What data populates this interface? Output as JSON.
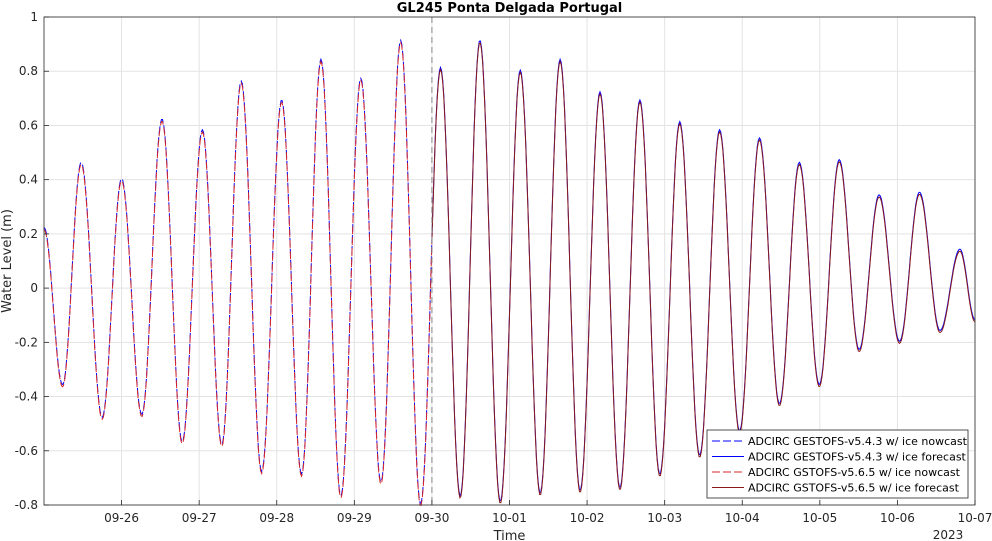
{
  "chart_data": {
    "type": "line",
    "title": "GL245 Ponta Delgada Portugal",
    "xlabel": "Time",
    "ylabel": "Water Level (m)",
    "year_label": "2023",
    "ylim": [
      -0.8,
      1.0
    ],
    "yticks": [
      -0.8,
      -0.6,
      -0.4,
      -0.2,
      0,
      0.2,
      0.4,
      0.6,
      0.8,
      1
    ],
    "ytick_labels": [
      "-0.8",
      "-0.6",
      "-0.4",
      "-0.2",
      "0",
      "0.2",
      "0.4",
      "0.6",
      "0.8",
      "1"
    ],
    "xlim": [
      "2023-09-25T00:00",
      "2023-10-07T00:00"
    ],
    "xticks": [
      "2023-09-26",
      "2023-09-27",
      "2023-09-28",
      "2023-09-29",
      "2023-09-30",
      "2023-10-01",
      "2023-10-02",
      "2023-10-03",
      "2023-10-04",
      "2023-10-05",
      "2023-10-06",
      "2023-10-07"
    ],
    "xtick_labels": [
      "09-26",
      "09-27",
      "09-28",
      "09-29",
      "09-30",
      "10-01",
      "10-02",
      "10-03",
      "10-04",
      "10-05",
      "10-06",
      "10-07"
    ],
    "nowcast_forecast_split": "2023-09-30T00:00",
    "grid": true,
    "legend_position": "bottom-right",
    "series": [
      {
        "name": "ADCIRC GESTOFS-v5.4.3 w/ ice nowcast",
        "color": "#0000ff",
        "style": "dashed",
        "period": "nowcast"
      },
      {
        "name": "ADCIRC GESTOFS-v5.4.3 w/ ice forecast",
        "color": "#0000ff",
        "style": "solid",
        "period": "forecast"
      },
      {
        "name": "ADCIRC GSTOFS-v5.6.5 w/ ice nowcast",
        "color": "#d62728",
        "style": "dashed",
        "period": "nowcast"
      },
      {
        "name": "ADCIRC GSTOFS-v5.6.5 w/ ice forecast",
        "color": "#8b1a1a",
        "style": "solid",
        "period": "forecast"
      }
    ],
    "extrema": [
      {
        "t": "2023-09-25T00:00",
        "v": 0.22
      },
      {
        "t": "2023-09-25T05:45",
        "v": -0.36
      },
      {
        "t": "2023-09-25T11:30",
        "v": 0.46
      },
      {
        "t": "2023-09-25T18:00",
        "v": -0.48
      },
      {
        "t": "2023-09-26T00:00",
        "v": 0.4
      },
      {
        "t": "2023-09-26T06:15",
        "v": -0.47
      },
      {
        "t": "2023-09-26T12:30",
        "v": 0.62
      },
      {
        "t": "2023-09-26T18:45",
        "v": -0.57
      },
      {
        "t": "2023-09-27T01:00",
        "v": 0.58
      },
      {
        "t": "2023-09-27T07:00",
        "v": -0.58
      },
      {
        "t": "2023-09-27T13:00",
        "v": 0.76
      },
      {
        "t": "2023-09-27T19:20",
        "v": -0.68
      },
      {
        "t": "2023-09-28T01:30",
        "v": 0.69
      },
      {
        "t": "2023-09-28T07:40",
        "v": -0.69
      },
      {
        "t": "2023-09-28T13:40",
        "v": 0.84
      },
      {
        "t": "2023-09-28T19:50",
        "v": -0.77
      },
      {
        "t": "2023-09-29T02:00",
        "v": 0.77
      },
      {
        "t": "2023-09-29T08:15",
        "v": -0.72
      },
      {
        "t": "2023-09-29T14:20",
        "v": 0.91
      },
      {
        "t": "2023-09-29T20:30",
        "v": -0.8
      },
      {
        "t": "2023-09-30T02:40",
        "v": 0.81
      },
      {
        "t": "2023-09-30T08:45",
        "v": -0.77
      },
      {
        "t": "2023-09-30T14:50",
        "v": 0.91
      },
      {
        "t": "2023-09-30T21:10",
        "v": -0.79
      },
      {
        "t": "2023-10-01T03:20",
        "v": 0.8
      },
      {
        "t": "2023-10-01T09:30",
        "v": -0.76
      },
      {
        "t": "2023-10-01T15:40",
        "v": 0.84
      },
      {
        "t": "2023-10-01T21:50",
        "v": -0.75
      },
      {
        "t": "2023-10-02T04:00",
        "v": 0.72
      },
      {
        "t": "2023-10-02T10:10",
        "v": -0.74
      },
      {
        "t": "2023-10-02T16:20",
        "v": 0.69
      },
      {
        "t": "2023-10-02T22:30",
        "v": -0.69
      },
      {
        "t": "2023-10-03T04:40",
        "v": 0.61
      },
      {
        "t": "2023-10-03T10:50",
        "v": -0.62
      },
      {
        "t": "2023-10-03T17:00",
        "v": 0.58
      },
      {
        "t": "2023-10-03T23:10",
        "v": -0.53
      },
      {
        "t": "2023-10-04T05:20",
        "v": 0.55
      },
      {
        "t": "2023-10-04T11:30",
        "v": -0.43
      },
      {
        "t": "2023-10-04T17:40",
        "v": 0.46
      },
      {
        "t": "2023-10-04T23:50",
        "v": -0.36
      },
      {
        "t": "2023-10-05T06:00",
        "v": 0.47
      },
      {
        "t": "2023-10-05T12:10",
        "v": -0.23
      },
      {
        "t": "2023-10-05T18:20",
        "v": 0.34
      },
      {
        "t": "2023-10-06T00:40",
        "v": -0.2
      },
      {
        "t": "2023-10-06T06:50",
        "v": 0.35
      },
      {
        "t": "2023-10-06T13:10",
        "v": -0.16
      },
      {
        "t": "2023-10-06T19:20",
        "v": 0.14
      },
      {
        "t": "2023-10-07T00:00",
        "v": -0.12
      }
    ]
  }
}
